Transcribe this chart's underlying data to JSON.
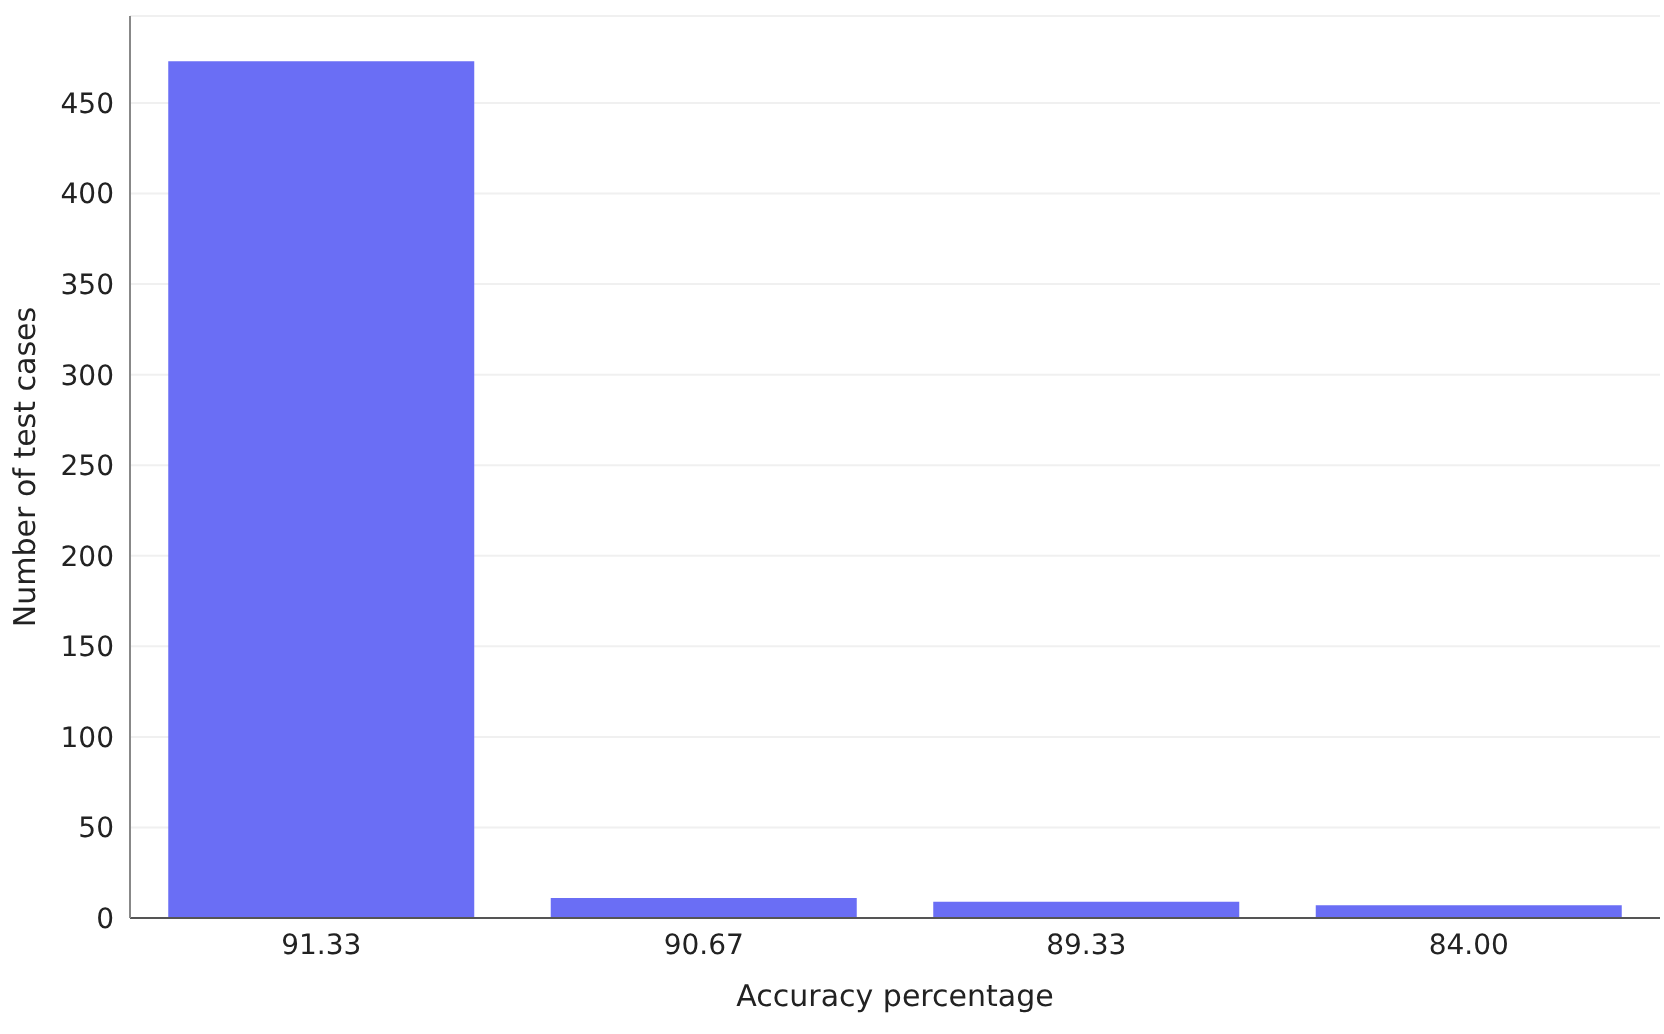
{
  "chart_data": {
    "type": "bar",
    "xlabel": "Accuracy percentage",
    "ylabel": "Number of test cases",
    "categories": [
      "91.33",
      "90.67",
      "89.33",
      "84.00"
    ],
    "values": [
      473,
      11,
      9,
      7
    ],
    "color": "#6a6ef5",
    "ylim": [
      0,
      498
    ],
    "yticks": [
      0,
      50,
      100,
      150,
      200,
      250,
      300,
      350,
      400,
      450
    ],
    "grid": "y"
  }
}
